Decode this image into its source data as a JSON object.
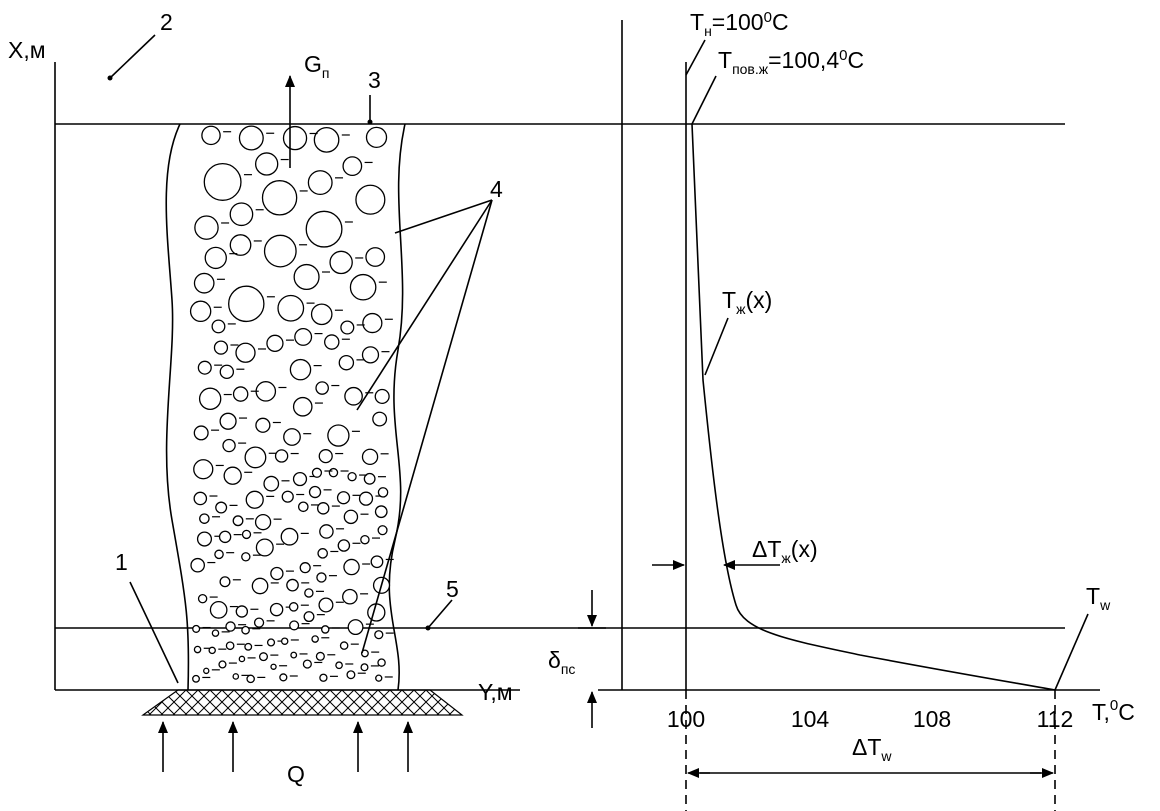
{
  "left": {
    "axis_x": "X,м",
    "axis_y": "Y,м",
    "flux": "Q",
    "steam": {
      "symbol": "G",
      "sub": "п"
    },
    "markers": [
      "1",
      "2",
      "3",
      "4",
      "5"
    ]
  },
  "right": {
    "t_sat": {
      "symbol": "T",
      "sub": "н",
      "eq": "=100",
      "sup": "0",
      "unit": "C"
    },
    "t_surf": {
      "symbol": "T",
      "sub": "пов.ж",
      "eq": "=100,4",
      "sup": "0",
      "unit": "C"
    },
    "t_liquid": {
      "symbol": "T",
      "sub": "ж",
      "arg": "(x)"
    },
    "dt_liquid": {
      "symbol": "ΔT",
      "sub": "ж",
      "arg": "(x)"
    },
    "t_wall": {
      "symbol": "T",
      "sub": "w"
    },
    "delta": {
      "symbol": "δ",
      "sub": "пс"
    },
    "dt_wall": {
      "symbol": "ΔT",
      "sub": "w"
    },
    "axis": {
      "label": "T,",
      "sup": "0",
      "unit": "C"
    },
    "ticks": [
      "100",
      "104",
      "108",
      "112"
    ]
  }
}
